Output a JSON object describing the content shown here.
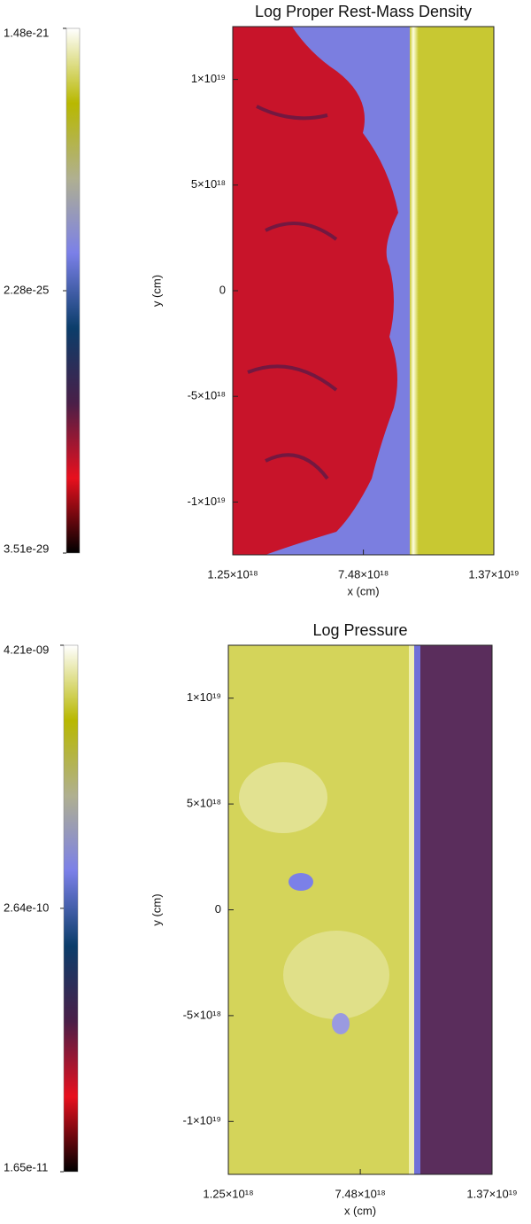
{
  "chart_data": [
    {
      "type": "image",
      "title": "Log Proper Rest-Mass Density",
      "xlabel": "x (cm)",
      "ylabel": "y (cm)",
      "xlim": [
        1.25e+18,
        1.37e+19
      ],
      "ylim": [
        -1.25e+19,
        1.25e+19
      ],
      "xticks": [
        {
          "value": 1.25e+18,
          "label": "1.25×10¹⁸"
        },
        {
          "value": 7.48e+18,
          "label": "7.48×10¹⁸"
        },
        {
          "value": 1.37e+19,
          "label": "1.37×10¹⁹"
        }
      ],
      "yticks": [
        {
          "value": -1e+19,
          "label": "-1×10¹⁹"
        },
        {
          "value": -5e+18,
          "label": "-5×10¹⁸"
        },
        0,
        {
          "value": 5e+18,
          "label": "5×10¹⁸"
        },
        {
          "value": 1e+19,
          "label": "1×10¹⁹"
        }
      ],
      "clim": [
        3.51e-29,
        1.48e-21
      ],
      "clog": true,
      "cticks": [
        {
          "value": 3.51e-29,
          "label": "3.51e-29"
        },
        {
          "value": 2.28e-25,
          "label": "2.28e-25"
        },
        {
          "value": 1.48e-21,
          "label": "1.48e-21"
        }
      ],
      "colormap": [
        "#000000",
        "#e8101e",
        "#4a1f48",
        "#0b3d6a",
        "#7b80e8",
        "#b0b090",
        "#b8b800",
        "#ffffff"
      ]
    },
    {
      "type": "image",
      "title": "Log Pressure",
      "xlabel": "x (cm)",
      "ylabel": "y (cm)",
      "xlim": [
        1.25e+18,
        1.37e+19
      ],
      "ylim": [
        -1.25e+19,
        1.25e+19
      ],
      "xticks": [
        {
          "value": 1.25e+18,
          "label": "1.25×10¹⁸"
        },
        {
          "value": 7.48e+18,
          "label": "7.48×10¹⁸"
        },
        {
          "value": 1.37e+19,
          "label": "1.37×10¹⁹"
        }
      ],
      "yticks": [
        {
          "value": -1e+19,
          "label": "-1×10¹⁹"
        },
        {
          "value": -5e+18,
          "label": "-5×10¹⁸"
        },
        0,
        {
          "value": 5e+18,
          "label": "5×10¹⁸"
        },
        {
          "value": 1e+19,
          "label": "1×10¹⁹"
        }
      ],
      "clim": [
        1.65e-11,
        4.21e-09
      ],
      "clog": true,
      "cticks": [
        {
          "value": 1.65e-11,
          "label": "1.65e-11"
        },
        {
          "value": 2.64e-10,
          "label": "2.64e-10"
        },
        {
          "value": 4.21e-09,
          "label": "4.21e-09"
        }
      ],
      "colormap": [
        "#000000",
        "#e8101e",
        "#4a1f48",
        "#0b3d6a",
        "#7b80e8",
        "#b0b090",
        "#b8b800",
        "#ffffff"
      ]
    }
  ]
}
